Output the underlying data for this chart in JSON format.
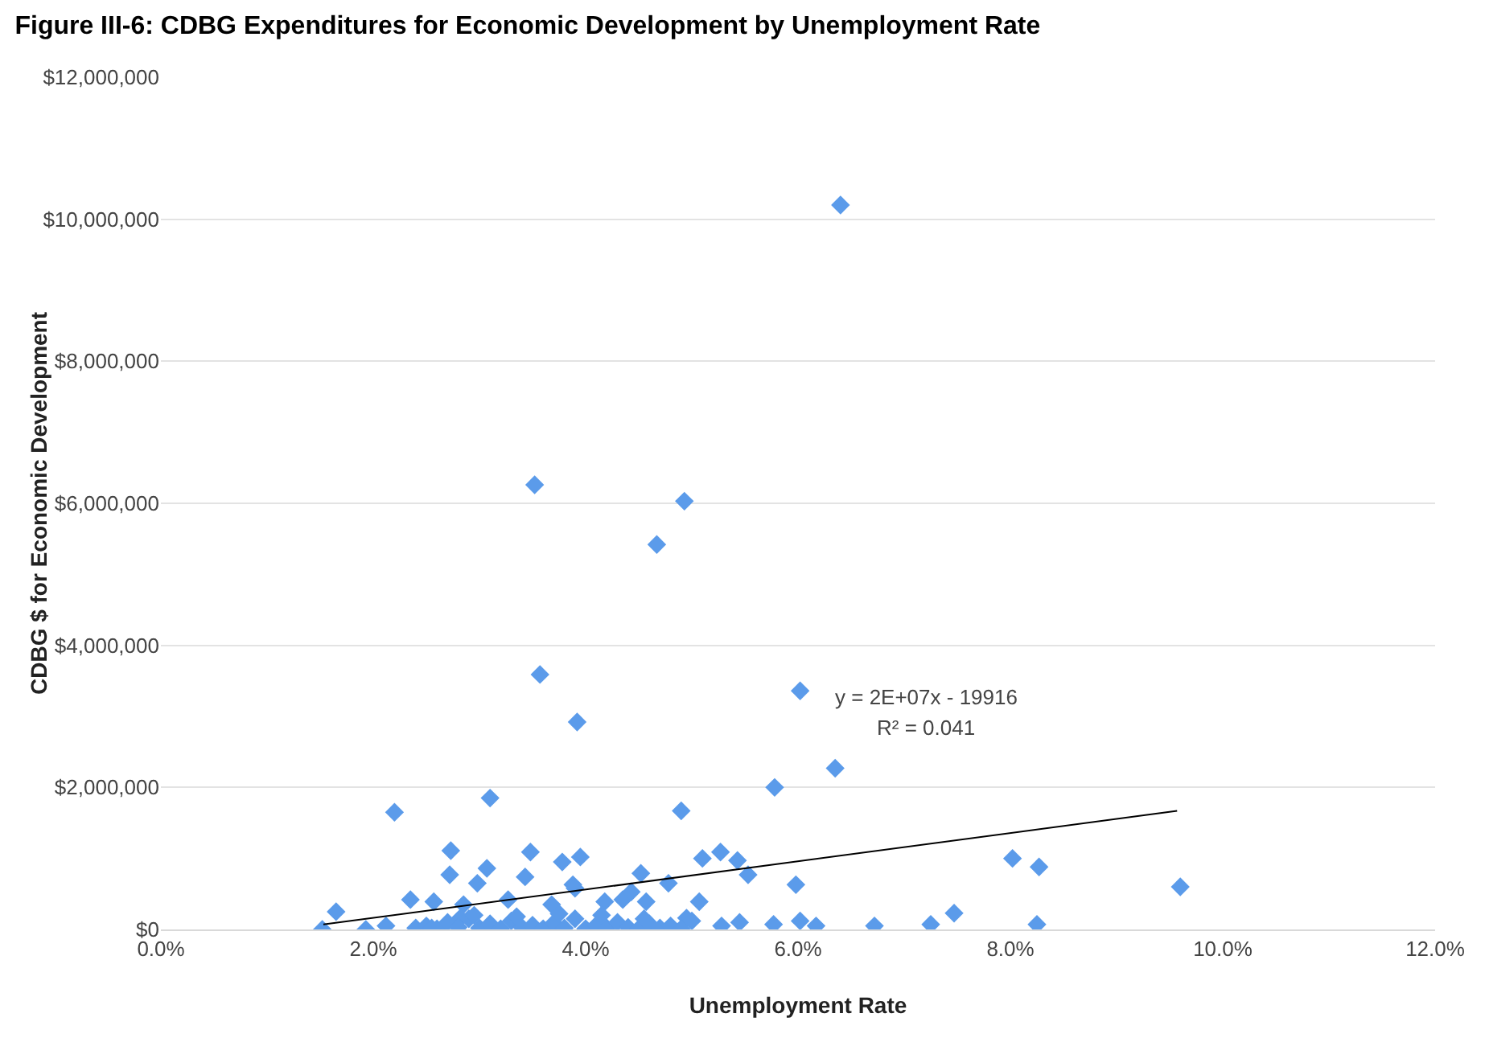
{
  "chart_data": {
    "type": "scatter",
    "title": "Figure III-6: CDBG Expenditures for Economic Development by Unemployment Rate",
    "xlabel": "Unemployment Rate",
    "ylabel": "CDBG $ for Economic Development",
    "xlim": [
      0,
      12
    ],
    "xticks": [
      {
        "value": 0,
        "label": "0.0%"
      },
      {
        "value": 2,
        "label": "2.0%"
      },
      {
        "value": 4,
        "label": "4.0%"
      },
      {
        "value": 6,
        "label": "6.0%"
      },
      {
        "value": 8,
        "label": "8.0%"
      },
      {
        "value": 10,
        "label": "10.0%"
      },
      {
        "value": 12,
        "label": "12.0%"
      }
    ],
    "ylim": [
      0,
      12000000
    ],
    "yticks": [
      {
        "value": 0,
        "label": "$0"
      },
      {
        "value": 2000000,
        "label": "$2,000,000"
      },
      {
        "value": 4000000,
        "label": "$4,000,000"
      },
      {
        "value": 6000000,
        "label": "$6,000,000"
      },
      {
        "value": 8000000,
        "label": "$8,000,000"
      },
      {
        "value": 10000000,
        "label": "$10,000,000"
      },
      {
        "value": 12000000,
        "label": "$12,000,000"
      }
    ],
    "grid": "y",
    "legend": false,
    "series": [
      {
        "marker": "diamond",
        "color": "#5b9bea",
        "x": [
          6.4,
          3.52,
          4.93,
          4.67,
          3.57,
          6.02,
          3.92,
          6.35,
          5.78,
          8.02,
          8.27,
          9.6,
          5.98,
          5.28,
          5.45,
          5.77,
          6.02,
          6.17,
          6.72,
          7.25,
          7.47,
          8.25,
          5.27,
          5.43,
          5.53,
          5.1,
          2.2,
          3.1,
          4.9,
          2.73,
          3.48,
          3.78,
          3.95,
          2.72,
          3.07,
          2.98,
          3.43,
          3.88,
          4.52,
          4.78,
          1.65,
          1.52,
          1.93,
          2.12,
          2.35,
          2.57,
          2.85,
          3.27,
          3.68,
          3.9,
          4.18,
          4.35,
          4.43,
          4.57,
          5.07,
          2.82,
          4.95,
          2.4,
          2.5,
          2.6,
          2.7,
          2.8,
          2.9,
          3.0,
          3.1,
          3.2,
          3.3,
          3.4,
          3.5,
          3.6,
          3.7,
          3.8,
          3.9,
          4.0,
          4.1,
          4.2,
          4.3,
          4.4,
          4.5,
          4.6,
          4.7,
          4.8,
          4.9,
          5.0,
          2.55,
          2.95,
          3.35,
          3.75,
          4.15,
          4.55
        ],
        "values": [
          10200000,
          6260000,
          6030000,
          5420000,
          3590000,
          3360000,
          2920000,
          2270000,
          2000000,
          1000000,
          880000,
          600000,
          630000,
          50000,
          100000,
          70000,
          120000,
          50000,
          50000,
          70000,
          230000,
          70000,
          1090000,
          970000,
          770000,
          1000000,
          1650000,
          1850000,
          1670000,
          1110000,
          1090000,
          950000,
          1020000,
          770000,
          860000,
          650000,
          740000,
          630000,
          790000,
          650000,
          250000,
          0,
          0,
          50000,
          420000,
          390000,
          350000,
          420000,
          350000,
          580000,
          390000,
          420000,
          530000,
          390000,
          390000,
          160000,
          160000,
          20000,
          50000,
          10000,
          100000,
          30000,
          150000,
          20000,
          80000,
          10000,
          120000,
          30000,
          60000,
          10000,
          90000,
          20000,
          150000,
          10000,
          60000,
          20000,
          100000,
          30000,
          10000,
          80000,
          20000,
          50000,
          10000,
          120000,
          20000,
          200000,
          180000,
          220000,
          200000,
          150000
        ]
      },
      {
        "type": "line",
        "marker": "none",
        "color": "#000000",
        "x": [
          1.53,
          9.57
        ],
        "values": [
          70000,
          1670000
        ]
      }
    ],
    "annotations": [
      "y = 2E+07x - 19916",
      "R² = 0.041"
    ]
  }
}
